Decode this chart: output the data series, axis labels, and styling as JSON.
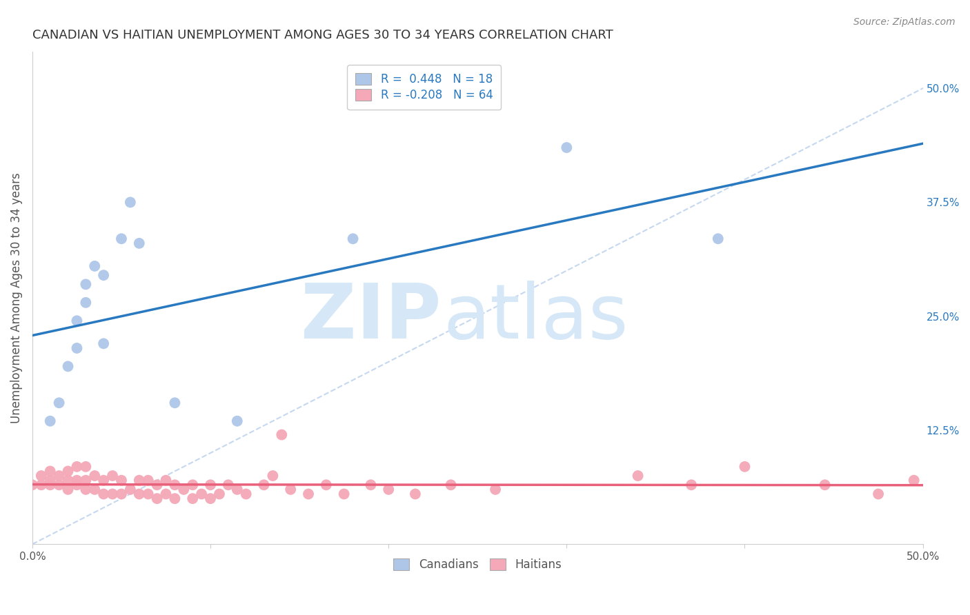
{
  "title": "CANADIAN VS HAITIAN UNEMPLOYMENT AMONG AGES 30 TO 34 YEARS CORRELATION CHART",
  "source": "Source: ZipAtlas.com",
  "ylabel": "Unemployment Among Ages 30 to 34 years",
  "xlim": [
    0.0,
    0.5
  ],
  "ylim": [
    0.0,
    0.54
  ],
  "legend_r1": "R =  0.448   N = 18",
  "legend_r2": "R = -0.208   N = 64",
  "canadian_color": "#aec6e8",
  "haitian_color": "#f4a8b8",
  "canadian_line_color": "#2979c0",
  "haitian_line_color": "#e8607a",
  "dashed_line_color": "#c5d8f0",
  "background_color": "#ffffff",
  "grid_color": "#d8d8d8",
  "canadian_x": [
    0.01,
    0.015,
    0.02,
    0.025,
    0.025,
    0.03,
    0.03,
    0.035,
    0.04,
    0.04,
    0.05,
    0.055,
    0.06,
    0.08,
    0.115,
    0.18,
    0.3,
    0.385
  ],
  "canadian_y": [
    0.135,
    0.155,
    0.195,
    0.215,
    0.245,
    0.265,
    0.285,
    0.305,
    0.22,
    0.295,
    0.335,
    0.375,
    0.33,
    0.155,
    0.135,
    0.335,
    0.435,
    0.335
  ],
  "haitian_x": [
    0.0,
    0.005,
    0.005,
    0.01,
    0.01,
    0.01,
    0.015,
    0.015,
    0.02,
    0.02,
    0.02,
    0.025,
    0.025,
    0.025,
    0.03,
    0.03,
    0.03,
    0.035,
    0.035,
    0.04,
    0.04,
    0.045,
    0.045,
    0.05,
    0.05,
    0.055,
    0.06,
    0.06,
    0.065,
    0.065,
    0.07,
    0.07,
    0.075,
    0.075,
    0.08,
    0.08,
    0.085,
    0.09,
    0.09,
    0.095,
    0.1,
    0.1,
    0.105,
    0.11,
    0.115,
    0.12,
    0.13,
    0.135,
    0.14,
    0.145,
    0.155,
    0.165,
    0.175,
    0.19,
    0.2,
    0.215,
    0.235,
    0.26,
    0.34,
    0.37,
    0.4,
    0.445,
    0.475,
    0.495
  ],
  "haitian_y": [
    0.065,
    0.065,
    0.075,
    0.065,
    0.07,
    0.08,
    0.065,
    0.075,
    0.06,
    0.07,
    0.08,
    0.065,
    0.07,
    0.085,
    0.06,
    0.07,
    0.085,
    0.06,
    0.075,
    0.055,
    0.07,
    0.055,
    0.075,
    0.055,
    0.07,
    0.06,
    0.055,
    0.07,
    0.055,
    0.07,
    0.05,
    0.065,
    0.055,
    0.07,
    0.05,
    0.065,
    0.06,
    0.05,
    0.065,
    0.055,
    0.05,
    0.065,
    0.055,
    0.065,
    0.06,
    0.055,
    0.065,
    0.075,
    0.12,
    0.06,
    0.055,
    0.065,
    0.055,
    0.065,
    0.06,
    0.055,
    0.065,
    0.06,
    0.075,
    0.065,
    0.085,
    0.065,
    0.055,
    0.07
  ],
  "y_ticks_right": [
    0.0,
    0.125,
    0.25,
    0.375,
    0.5
  ],
  "y_tick_labels_right": [
    "",
    "12.5%",
    "25.0%",
    "37.5%",
    "50.0%"
  ],
  "x_ticks": [
    0.0,
    0.1,
    0.2,
    0.3,
    0.4,
    0.5
  ],
  "x_tick_labels": [
    "0.0%",
    "",
    "",
    "",
    "",
    "50.0%"
  ]
}
